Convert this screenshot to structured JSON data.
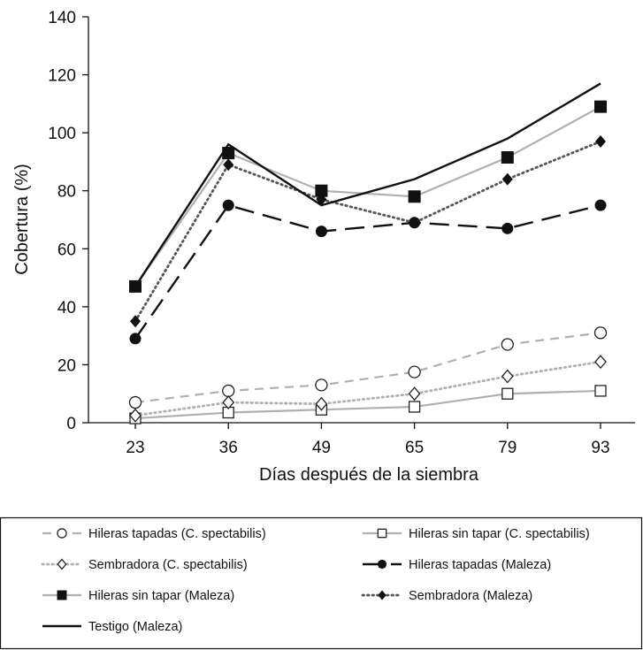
{
  "chart_data": {
    "type": "line",
    "title": "",
    "xlabel": "Días después de la siembra",
    "ylabel": "Cobertura (%)",
    "ylim": [
      0,
      140
    ],
    "yticks": [
      0,
      20,
      40,
      60,
      80,
      100,
      120,
      140
    ],
    "categories": [
      "23",
      "36",
      "49",
      "65",
      "79",
      "93"
    ],
    "grid": false,
    "legend_position": "bottom",
    "series": [
      {
        "name": "Hileras tapadas (C. spectabilis)",
        "values": [
          7,
          11,
          13,
          17.5,
          27,
          31
        ],
        "color": "#b0b0b0",
        "line": "dashed",
        "marker": "circle-open"
      },
      {
        "name": "Hileras sin tapar (C. spectabilis)",
        "values": [
          1.5,
          3.5,
          4.5,
          5.5,
          10,
          11
        ],
        "color": "#b0b0b0",
        "line": "solid",
        "marker": "square-open"
      },
      {
        "name": "Sembradora (C. spectabilis)",
        "values": [
          2.5,
          7,
          6.5,
          10,
          16,
          21
        ],
        "color": "#b0b0b0",
        "line": "dotted",
        "marker": "diamond-open"
      },
      {
        "name": "Hileras tapadas (Maleza)",
        "values": [
          29,
          75,
          66,
          69,
          67,
          75
        ],
        "color": "#111111",
        "line": "longdash",
        "marker": "circle-filled"
      },
      {
        "name": "Hileras sin tapar (Maleza)",
        "values": [
          47,
          93,
          80,
          78,
          91.5,
          109
        ],
        "color": "#b0b0b0",
        "line": "solid",
        "marker": "square-filled"
      },
      {
        "name": "Sembradora (Maleza)",
        "values": [
          35,
          89,
          77,
          69,
          84,
          97
        ],
        "color": "#555555",
        "line": "dotted",
        "marker": "diamond-filled"
      },
      {
        "name": "Testigo (Maleza)",
        "values": [
          47,
          96,
          75,
          84,
          98,
          117
        ],
        "color": "#111111",
        "line": "solid",
        "marker": "none"
      }
    ]
  }
}
